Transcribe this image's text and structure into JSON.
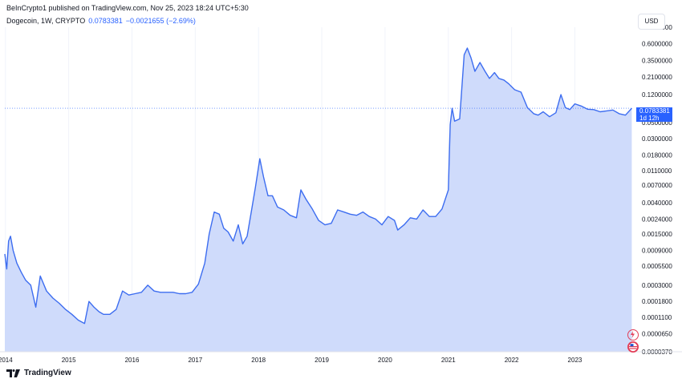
{
  "header": {
    "publisher_line": "BeInCrypto1 published on TradingView.com, Nov 25, 2023 18:24 UTC+5:30",
    "symbol": "Dogecoin, 1W, CRYPTO",
    "last_value": "0.0783381",
    "change": "−0.0021655 (−2.69%)",
    "currency_button": "USD"
  },
  "price_tag": {
    "value": "0.0783381",
    "countdown": "1d 12h"
  },
  "footer": {
    "brand": "TradingView"
  },
  "colors": {
    "line": "#3d6df0",
    "fill": "#ccd9fb",
    "accent": "#2962ff",
    "grid": "#f0f3fa"
  },
  "chart_data": {
    "type": "area",
    "y_scale": "log",
    "ylim": [
      3.7e-05,
      1.0
    ],
    "y_ticks": [
      "1.0000000",
      "0.6000000",
      "0.3500000",
      "0.2100000",
      "0.1200000",
      "0.0783381",
      "0.0500000",
      "0.0300000",
      "0.0180000",
      "0.0110000",
      "0.0070000",
      "0.0040000",
      "0.0024000",
      "0.0015000",
      "0.0009000",
      "0.0005500",
      "0.0003000",
      "0.0001800",
      "0.0001100",
      "0.0000650",
      "0.0000370"
    ],
    "x_ticks": [
      "2014",
      "2015",
      "2016",
      "2017",
      "2018",
      "2019",
      "2020",
      "2021",
      "2022",
      "2023"
    ],
    "x": [
      2013.99,
      2014.02,
      2014.05,
      2014.08,
      2014.12,
      2014.18,
      2014.25,
      2014.32,
      2014.4,
      2014.48,
      2014.55,
      2014.65,
      2014.75,
      2014.85,
      2014.95,
      2015.05,
      2015.15,
      2015.25,
      2015.32,
      2015.4,
      2015.48,
      2015.55,
      2015.65,
      2015.75,
      2015.85,
      2015.95,
      2016.05,
      2016.15,
      2016.25,
      2016.35,
      2016.45,
      2016.55,
      2016.65,
      2016.75,
      2016.85,
      2016.95,
      2017.05,
      2017.15,
      2017.22,
      2017.3,
      2017.38,
      2017.45,
      2017.52,
      2017.6,
      2017.68,
      2017.75,
      2017.82,
      2017.88,
      2017.95,
      2018.02,
      2018.08,
      2018.15,
      2018.22,
      2018.3,
      2018.4,
      2018.5,
      2018.6,
      2018.67,
      2018.75,
      2018.85,
      2018.95,
      2019.05,
      2019.15,
      2019.25,
      2019.35,
      2019.45,
      2019.55,
      2019.65,
      2019.75,
      2019.85,
      2019.95,
      2020.05,
      2020.15,
      2020.2,
      2020.3,
      2020.4,
      2020.5,
      2020.6,
      2020.7,
      2020.8,
      2020.9,
      2021.0,
      2021.03,
      2021.06,
      2021.1,
      2021.18,
      2021.25,
      2021.3,
      2021.36,
      2021.42,
      2021.5,
      2021.58,
      2021.65,
      2021.73,
      2021.8,
      2021.88,
      2021.95,
      2022.05,
      2022.15,
      2022.25,
      2022.35,
      2022.42,
      2022.5,
      2022.6,
      2022.7,
      2022.78,
      2022.85,
      2022.92,
      2023.0,
      2023.1,
      2023.2,
      2023.3,
      2023.4,
      2023.5,
      2023.6,
      2023.7,
      2023.8,
      2023.9
    ],
    "y": [
      0.0008,
      0.0005,
      0.0012,
      0.0014,
      0.0009,
      0.0006,
      0.00045,
      0.00035,
      0.0003,
      0.00015,
      0.0004,
      0.00025,
      0.0002,
      0.00017,
      0.00014,
      0.00012,
      0.0001,
      9e-05,
      0.00018,
      0.00015,
      0.00013,
      0.00012,
      0.00012,
      0.00014,
      0.00025,
      0.00022,
      0.00023,
      0.00024,
      0.0003,
      0.00025,
      0.00024,
      0.00024,
      0.00024,
      0.00023,
      0.00023,
      0.00024,
      0.00031,
      0.0006,
      0.0015,
      0.003,
      0.0028,
      0.0018,
      0.0016,
      0.0012,
      0.002,
      0.0011,
      0.0014,
      0.0028,
      0.0065,
      0.016,
      0.009,
      0.005,
      0.005,
      0.0035,
      0.0032,
      0.0027,
      0.0025,
      0.006,
      0.0045,
      0.0033,
      0.0023,
      0.002,
      0.0021,
      0.0032,
      0.003,
      0.0028,
      0.0027,
      0.003,
      0.0026,
      0.0024,
      0.002,
      0.0026,
      0.0023,
      0.0017,
      0.002,
      0.0025,
      0.0024,
      0.0032,
      0.0026,
      0.0026,
      0.0033,
      0.006,
      0.047,
      0.078,
      0.052,
      0.056,
      0.42,
      0.52,
      0.38,
      0.25,
      0.33,
      0.25,
      0.2,
      0.24,
      0.2,
      0.19,
      0.17,
      0.14,
      0.13,
      0.08,
      0.066,
      0.063,
      0.07,
      0.06,
      0.068,
      0.12,
      0.08,
      0.075,
      0.09,
      0.084,
      0.076,
      0.075,
      0.07,
      0.072,
      0.074,
      0.066,
      0.063,
      0.07833
    ]
  }
}
